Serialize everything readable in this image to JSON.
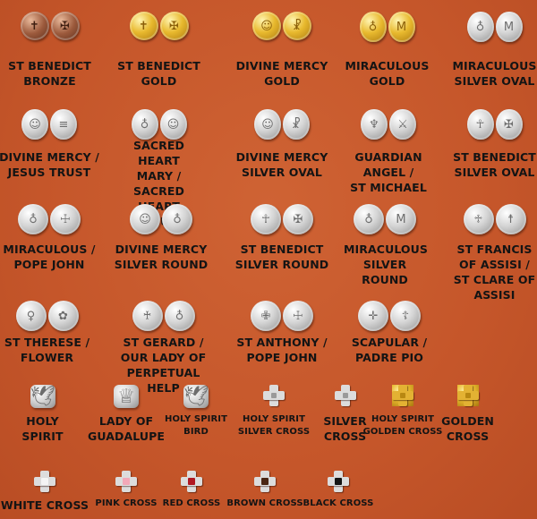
{
  "items": [
    {
      "id": "st-benedict-bronze",
      "label": "ST BENEDICT\nBRONZE",
      "metal": "bronze",
      "icons": [
        "cross-medal-icon",
        "benedict-medal-icon"
      ]
    },
    {
      "id": "st-benedict-gold",
      "label": "ST BENEDICT\nGOLD",
      "metal": "gold",
      "icons": [
        "cross-medal-icon",
        "benedict-medal-icon"
      ]
    },
    {
      "id": "divine-mercy-gold",
      "label": "DIVINE MERCY\nGOLD",
      "metal": "gold",
      "icons": [
        "jesus-medal-icon",
        "mercy-medal-icon"
      ]
    },
    {
      "id": "miraculous-gold",
      "label": "MIRACULOUS\nGOLD",
      "metal": "gold",
      "icons": [
        "mary-medal-icon",
        "monogram-medal-icon"
      ]
    },
    {
      "id": "miraculous-silver-oval",
      "label": "MIRACULOUS\nSILVER OVAL",
      "metal": "silver",
      "icons": [
        "mary-medal-icon",
        "monogram-medal-icon"
      ]
    },
    {
      "id": "divine-mercy-jesus-trust",
      "label": "DIVINE MERCY /\nJESUS TRUST",
      "metal": "silver",
      "icons": [
        "jesus-medal-icon",
        "text-medal-icon"
      ]
    },
    {
      "id": "sacred-heart-mary",
      "label": "SACRED HEART\nMARY /\nSACRED HEART\nJESUS",
      "metal": "silver",
      "icons": [
        "mary-medal-icon",
        "jesus-medal-icon"
      ]
    },
    {
      "id": "divine-mercy-silver-oval",
      "label": "DIVINE MERCY\nSILVER OVAL",
      "metal": "silver",
      "icons": [
        "jesus-medal-icon",
        "mercy-medal-icon"
      ]
    },
    {
      "id": "guardian-angel",
      "label": "GUARDIAN ANGEL /\nST MICHAEL",
      "metal": "silver",
      "icons": [
        "angel-medal-icon",
        "michael-medal-icon"
      ]
    },
    {
      "id": "st-benedict-silver-oval",
      "label": "ST BENEDICT\nSILVER OVAL",
      "metal": "silver",
      "icons": [
        "saint-medal-icon",
        "benedict-medal-icon"
      ]
    },
    {
      "id": "miraculous-pope-john",
      "label": "MIRACULOUS /\nPOPE JOHN",
      "metal": "silver",
      "icons": [
        "mary-medal-icon",
        "pope-medal-icon"
      ]
    },
    {
      "id": "divine-mercy-silver-round",
      "label": "DIVINE MERCY\nSILVER ROUND",
      "metal": "silver",
      "icons": [
        "jesus-medal-icon",
        "mary-medal-icon"
      ]
    },
    {
      "id": "st-benedict-silver-round",
      "label": "ST BENEDICT\nSILVER ROUND",
      "metal": "silver",
      "icons": [
        "saint-medal-icon",
        "benedict-medal-icon"
      ]
    },
    {
      "id": "miraculous-silver-round",
      "label": "MIRACULOUS\nSILVER\nROUND",
      "metal": "silver",
      "icons": [
        "mary-medal-icon",
        "monogram-medal-icon"
      ]
    },
    {
      "id": "st-francis",
      "label": "ST FRANCIS\nOF ASSISI /\nST CLARE OF\nASSISI",
      "metal": "silver",
      "icons": [
        "francis-medal-icon",
        "clare-medal-icon"
      ]
    },
    {
      "id": "st-therese-flower",
      "label": "ST THERESE /\nFLOWER",
      "metal": "silver",
      "icons": [
        "therese-medal-icon",
        "flower-medal-icon"
      ]
    },
    {
      "id": "st-gerard",
      "label": "ST GERARD /\nOUR LADY OF\nPERPETUAL HELP",
      "metal": "silver",
      "icons": [
        "gerard-medal-icon",
        "mary-medal-icon"
      ]
    },
    {
      "id": "st-anthony-pope-john",
      "label": "ST ANTHONY /\nPOPE JOHN",
      "metal": "silver",
      "icons": [
        "anthony-medal-icon",
        "pope-medal-icon"
      ]
    },
    {
      "id": "scapular-padre-pio",
      "label": "SCAPULAR /\nPADRE PIO",
      "metal": "silver",
      "icons": [
        "scapular-medal-icon",
        "pio-medal-icon"
      ]
    },
    {
      "id": "holy-spirit",
      "label": "HOLY\nSPIRIT",
      "metal": "silver",
      "icons": [
        "dove-icon"
      ]
    },
    {
      "id": "lady-of-guadalupe",
      "label": "LADY OF\nGUADALUPE",
      "metal": "silver",
      "icons": [
        "guadalupe-icon"
      ]
    },
    {
      "id": "holy-spirit-bird",
      "label": "HOLY SPIRIT\nBIRD",
      "metal": "silver",
      "icons": [
        "dove-icon"
      ]
    },
    {
      "id": "holy-spirit-silver-cross",
      "label": "HOLY SPIRIT\nSILVER CROSS",
      "metal": "silver",
      "icons": [
        "cross-icon"
      ]
    },
    {
      "id": "silver-cross",
      "label": "SILVER\nCROSS",
      "metal": "silver",
      "icons": [
        "cross-icon"
      ]
    },
    {
      "id": "holy-spirit-golden-cross",
      "label": "HOLY SPIRIT\nGOLDEN CROSS",
      "metal": "gold",
      "icons": [
        "cross-icon"
      ]
    },
    {
      "id": "golden-cross",
      "label": "GOLDEN\nCROSS",
      "metal": "gold",
      "icons": [
        "cross-icon"
      ]
    },
    {
      "id": "white-cross",
      "label": "WHITE CROSS",
      "metal": "silver",
      "icons": [
        "cross-icon"
      ],
      "core": "#f4f4f4"
    },
    {
      "id": "pink-cross",
      "label": "PINK CROSS",
      "metal": "silver",
      "icons": [
        "cross-icon"
      ],
      "core": "#f2a8b8"
    },
    {
      "id": "red-cross",
      "label": "RED CROSS",
      "metal": "silver",
      "icons": [
        "cross-icon"
      ],
      "core": "#b01822"
    },
    {
      "id": "brown-cross",
      "label": "BROWN CROSS",
      "metal": "silver",
      "icons": [
        "cross-icon"
      ],
      "core": "#4a2614"
    },
    {
      "id": "black-cross",
      "label": "BLACK CROSS",
      "metal": "silver",
      "icons": [
        "cross-icon"
      ],
      "core": "#151515"
    }
  ],
  "colors": {
    "background": "#c7592c",
    "text": "#141414"
  }
}
